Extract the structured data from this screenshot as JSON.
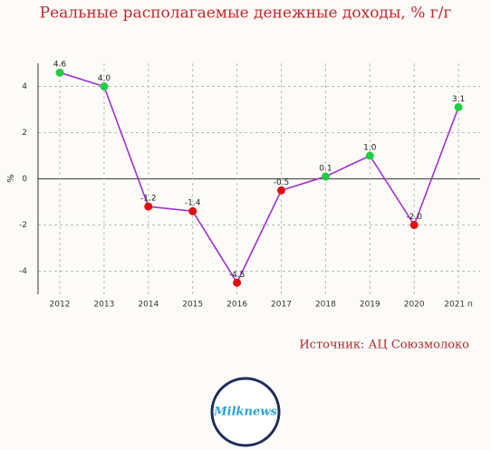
{
  "chart_data": {
    "type": "line",
    "title": "Реальные располагаемые денежные доходы, % г/г",
    "y_label": "%",
    "categories": [
      "2012",
      "2013",
      "2014",
      "2015",
      "2016",
      "2017",
      "2018",
      "2019",
      "2020",
      "2021 п"
    ],
    "values": [
      4.6,
      4.0,
      -1.2,
      -1.4,
      -4.5,
      -0.5,
      0.1,
      1.0,
      -2.0,
      3.1
    ],
    "value_labels": [
      "4.6",
      "4.0",
      "-1.2",
      "-1.4",
      "-4.5",
      "-0.5",
      "0.1",
      "1.0",
      "-2.0",
      "3.1"
    ],
    "color": "#a030d0",
    "positive_color": "#22cc44",
    "negative_color": "#e01010",
    "ylim": [
      -5,
      5
    ],
    "yticks": [
      -4,
      -2,
      0,
      2,
      4
    ],
    "grid": true,
    "source": "Источник: АЦ Союзмолоко"
  },
  "logo": "Milknews"
}
